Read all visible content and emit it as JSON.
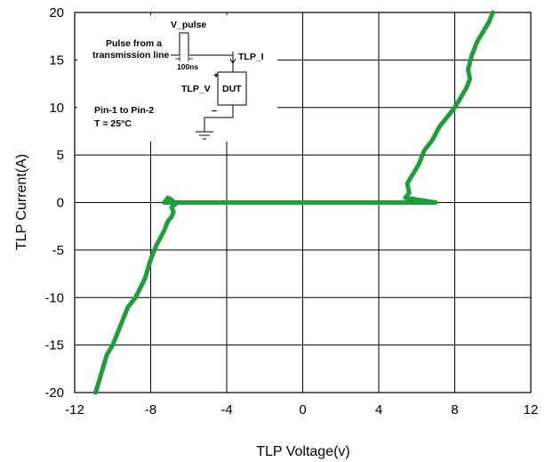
{
  "chart_data": {
    "type": "line",
    "xlabel": "TLP Voltage(v)",
    "ylabel": "TLP Current(A)",
    "xlim": [
      -12,
      12
    ],
    "ylim": [
      -20,
      20
    ],
    "xticks": [
      "-12",
      "-8",
      "-4",
      "0",
      "4",
      "8",
      "12"
    ],
    "yticks": [
      "20",
      "15",
      "10",
      "5",
      "0",
      "-5",
      "-10",
      "-15",
      "-20"
    ],
    "grid": true,
    "series": [
      {
        "color": "#1e9e3a",
        "x": [
          -10.9,
          -10.6,
          -10.3,
          -10.0,
          -9.6,
          -9.2,
          -8.8,
          -8.3,
          -8.0,
          -7.7,
          -7.3,
          -7.1,
          -6.9,
          -6.8,
          -6.9,
          -6.7,
          -6.9,
          -7.1,
          -7.2,
          -7.3,
          -5,
          -2,
          0,
          2,
          4,
          5.2,
          7.0,
          5.4,
          5.6,
          5.5,
          5.8,
          6.1,
          6.4,
          6.8,
          7.2,
          7.6,
          8.0,
          8.3,
          8.6,
          8.8,
          8.7,
          8.9,
          9.2,
          9.5,
          9.8,
          10.0
        ],
        "y": [
          -20,
          -18,
          -16,
          -15,
          -13,
          -11,
          -10,
          -8,
          -6,
          -4.5,
          -3,
          -2,
          -1.5,
          -1,
          -0.5,
          -0.2,
          0.3,
          0.5,
          0.2,
          0,
          0,
          0,
          0,
          0,
          0,
          0,
          0,
          0.5,
          1,
          2,
          3,
          4,
          5.5,
          6.5,
          8,
          9,
          10,
          11,
          12,
          13,
          14,
          15.5,
          17,
          18,
          19,
          20
        ]
      }
    ]
  },
  "inset": {
    "v_pulse": "V_pulse",
    "pulse_line1": "Pulse from a",
    "pulse_line2": "transmission line",
    "width": "100ns",
    "tlp_i": "TLP_I",
    "tlp_v": "TLP_V",
    "dut": "DUT",
    "plus": "+",
    "minus": "−",
    "pins": "Pin-1 to Pin-2",
    "temp": "T = 25°C"
  }
}
